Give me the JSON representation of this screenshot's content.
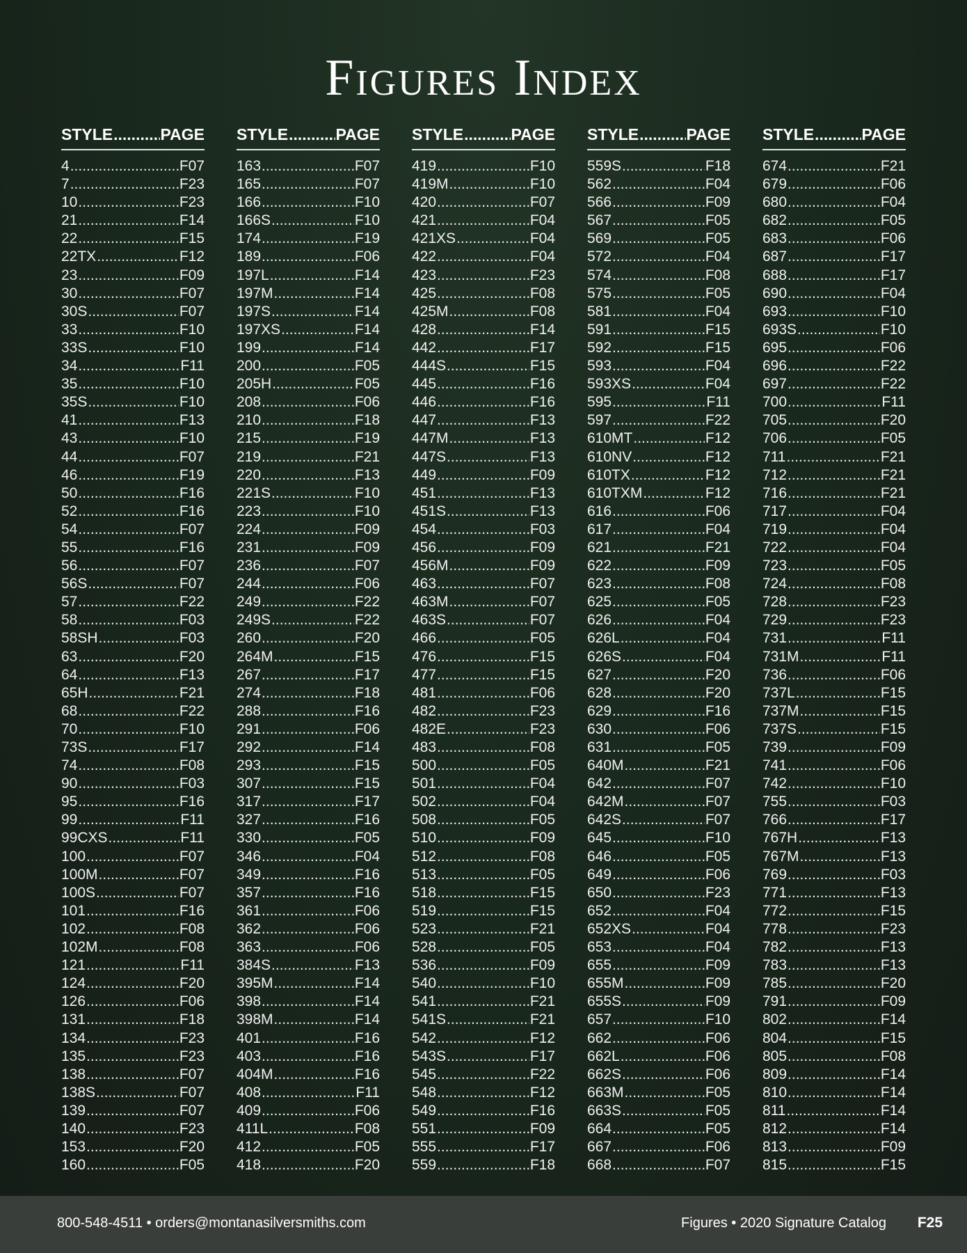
{
  "title": "Figures Index",
  "column_header": {
    "style": "STYLE",
    "page": "PAGE"
  },
  "columns": [
    [
      [
        "4",
        "F07"
      ],
      [
        "7",
        "F23"
      ],
      [
        "10",
        "F23"
      ],
      [
        "21",
        "F14"
      ],
      [
        "22",
        "F15"
      ],
      [
        "22TX",
        "F12"
      ],
      [
        "23",
        "F09"
      ],
      [
        "30",
        "F07"
      ],
      [
        "30S",
        "F07"
      ],
      [
        "33",
        "F10"
      ],
      [
        "33S",
        "F10"
      ],
      [
        "34",
        "F11"
      ],
      [
        "35",
        "F10"
      ],
      [
        "35S",
        "F10"
      ],
      [
        "41",
        "F13"
      ],
      [
        "43",
        "F10"
      ],
      [
        "44",
        "F07"
      ],
      [
        "46",
        "F19"
      ],
      [
        "50",
        "F16"
      ],
      [
        "52",
        "F16"
      ],
      [
        "54",
        "F07"
      ],
      [
        "55",
        "F16"
      ],
      [
        "56",
        "F07"
      ],
      [
        "56S",
        "F07"
      ],
      [
        "57",
        "F22"
      ],
      [
        "58",
        "F03"
      ],
      [
        "58SH",
        "F03"
      ],
      [
        "63",
        "F20"
      ],
      [
        "64",
        "F13"
      ],
      [
        "65H",
        "F21"
      ],
      [
        "68",
        "F22"
      ],
      [
        "70",
        "F10"
      ],
      [
        "73S",
        "F17"
      ],
      [
        "74",
        "F08"
      ],
      [
        "90",
        "F03"
      ],
      [
        "95",
        "F16"
      ],
      [
        "99",
        "F11"
      ],
      [
        "99CXS",
        "F11"
      ],
      [
        "100",
        "F07"
      ],
      [
        "100M",
        "F07"
      ],
      [
        "100S",
        "F07"
      ],
      [
        "101",
        "F16"
      ],
      [
        "102",
        "F08"
      ],
      [
        "102M",
        "F08"
      ],
      [
        "121",
        "F11"
      ],
      [
        "124",
        "F20"
      ],
      [
        "126",
        "F06"
      ],
      [
        "131",
        "F18"
      ],
      [
        "134",
        "F23"
      ],
      [
        "135",
        "F23"
      ],
      [
        "138",
        "F07"
      ],
      [
        "138S",
        "F07"
      ],
      [
        "139",
        "F07"
      ],
      [
        "140",
        "F23"
      ],
      [
        "153",
        "F20"
      ],
      [
        "160",
        "F05"
      ]
    ],
    [
      [
        "163",
        "F07"
      ],
      [
        "165",
        "F07"
      ],
      [
        "166",
        "F10"
      ],
      [
        "166S",
        "F10"
      ],
      [
        "174",
        "F19"
      ],
      [
        "189",
        "F06"
      ],
      [
        "197L",
        "F14"
      ],
      [
        "197M",
        "F14"
      ],
      [
        "197S",
        "F14"
      ],
      [
        "197XS",
        "F14"
      ],
      [
        "199",
        "F14"
      ],
      [
        "200",
        "F05"
      ],
      [
        "205H",
        "F05"
      ],
      [
        "208",
        "F06"
      ],
      [
        "210",
        "F18"
      ],
      [
        "215",
        "F19"
      ],
      [
        "219",
        "F21"
      ],
      [
        "220",
        "F13"
      ],
      [
        "221S",
        "F10"
      ],
      [
        "223",
        "F10"
      ],
      [
        "224",
        "F09"
      ],
      [
        "231",
        "F09"
      ],
      [
        "236",
        "F07"
      ],
      [
        "244",
        "F06"
      ],
      [
        "249",
        "F22"
      ],
      [
        "249S",
        "F22"
      ],
      [
        "260",
        "F20"
      ],
      [
        "264M",
        "F15"
      ],
      [
        "267",
        "F17"
      ],
      [
        "274",
        "F18"
      ],
      [
        "288",
        "F16"
      ],
      [
        "291",
        "F06"
      ],
      [
        "292",
        "F14"
      ],
      [
        "293",
        "F15"
      ],
      [
        "307",
        "F15"
      ],
      [
        "317",
        "F17"
      ],
      [
        "327",
        "F16"
      ],
      [
        "330",
        "F05"
      ],
      [
        "346",
        "F04"
      ],
      [
        "349",
        "F16"
      ],
      [
        "357",
        "F16"
      ],
      [
        "361",
        "F06"
      ],
      [
        "362",
        "F06"
      ],
      [
        "363",
        "F06"
      ],
      [
        "384S",
        "F13"
      ],
      [
        "395M",
        "F14"
      ],
      [
        "398",
        "F14"
      ],
      [
        "398M",
        "F14"
      ],
      [
        "401",
        "F16"
      ],
      [
        "403",
        "F16"
      ],
      [
        "404M",
        "F16"
      ],
      [
        "408",
        "F11"
      ],
      [
        "409",
        "F06"
      ],
      [
        "411L",
        "F08"
      ],
      [
        "412",
        "F05"
      ],
      [
        "418",
        "F20"
      ]
    ],
    [
      [
        "419",
        "F10"
      ],
      [
        "419M",
        "F10"
      ],
      [
        "420",
        "F07"
      ],
      [
        "421",
        "F04"
      ],
      [
        "421XS",
        "F04"
      ],
      [
        "422",
        "F04"
      ],
      [
        "423",
        "F23"
      ],
      [
        "425",
        "F08"
      ],
      [
        "425M",
        "F08"
      ],
      [
        "428",
        "F14"
      ],
      [
        "442",
        "F17"
      ],
      [
        "444S",
        "F15"
      ],
      [
        "445",
        "F16"
      ],
      [
        "446",
        "F16"
      ],
      [
        "447",
        "F13"
      ],
      [
        "447M",
        "F13"
      ],
      [
        "447S",
        "F13"
      ],
      [
        "449",
        "F09"
      ],
      [
        "451",
        "F13"
      ],
      [
        "451S",
        "F13"
      ],
      [
        "454",
        "F03"
      ],
      [
        "456",
        "F09"
      ],
      [
        "456M",
        "F09"
      ],
      [
        "463",
        "F07"
      ],
      [
        "463M",
        "F07"
      ],
      [
        "463S",
        "F07"
      ],
      [
        "466",
        "F05"
      ],
      [
        "476",
        "F15"
      ],
      [
        "477",
        "F15"
      ],
      [
        "481",
        "F06"
      ],
      [
        "482",
        "F23"
      ],
      [
        "482E",
        "F23"
      ],
      [
        "483",
        "F08"
      ],
      [
        "500",
        "F05"
      ],
      [
        "501",
        "F04"
      ],
      [
        "502",
        "F04"
      ],
      [
        "508",
        "F05"
      ],
      [
        "510",
        "F09"
      ],
      [
        "512",
        "F08"
      ],
      [
        "513",
        "F05"
      ],
      [
        "518",
        "F15"
      ],
      [
        "519",
        "F15"
      ],
      [
        "523",
        "F21"
      ],
      [
        "528",
        "F05"
      ],
      [
        "536",
        "F09"
      ],
      [
        "540",
        "F10"
      ],
      [
        "541",
        "F21"
      ],
      [
        "541S",
        "F21"
      ],
      [
        "542",
        "F12"
      ],
      [
        "543S",
        "F17"
      ],
      [
        "545",
        "F22"
      ],
      [
        "548",
        "F12"
      ],
      [
        "549",
        "F16"
      ],
      [
        "551",
        "F09"
      ],
      [
        "555",
        "F17"
      ],
      [
        "559",
        "F18"
      ]
    ],
    [
      [
        "559S",
        "F18"
      ],
      [
        "562",
        "F04"
      ],
      [
        "566",
        "F09"
      ],
      [
        "567",
        "F05"
      ],
      [
        "569",
        "F05"
      ],
      [
        "572",
        "F04"
      ],
      [
        "574",
        "F08"
      ],
      [
        "575",
        "F05"
      ],
      [
        "581",
        "F04"
      ],
      [
        "591",
        "F15"
      ],
      [
        "592",
        "F15"
      ],
      [
        "593",
        "F04"
      ],
      [
        "593XS",
        "F04"
      ],
      [
        "595",
        "F11"
      ],
      [
        "597",
        "F22"
      ],
      [
        "610MT",
        "F12"
      ],
      [
        "610NV",
        "F12"
      ],
      [
        "610TX",
        "F12"
      ],
      [
        "610TXM",
        "F12"
      ],
      [
        "616",
        "F06"
      ],
      [
        "617",
        "F04"
      ],
      [
        "621",
        "F21"
      ],
      [
        "622",
        "F09"
      ],
      [
        "623",
        "F08"
      ],
      [
        "625",
        "F05"
      ],
      [
        "626",
        "F04"
      ],
      [
        "626L",
        "F04"
      ],
      [
        "626S",
        "F04"
      ],
      [
        "627",
        "F20"
      ],
      [
        "628",
        "F20"
      ],
      [
        "629",
        "F16"
      ],
      [
        "630",
        "F06"
      ],
      [
        "631",
        "F05"
      ],
      [
        "640M",
        "F21"
      ],
      [
        "642",
        "F07"
      ],
      [
        "642M",
        "F07"
      ],
      [
        "642S",
        "F07"
      ],
      [
        "645",
        "F10"
      ],
      [
        "646",
        "F05"
      ],
      [
        "649",
        "F06"
      ],
      [
        "650",
        "F23"
      ],
      [
        "652",
        "F04"
      ],
      [
        "652XS",
        "F04"
      ],
      [
        "653",
        "F04"
      ],
      [
        "655",
        "F09"
      ],
      [
        "655M",
        "F09"
      ],
      [
        "655S",
        "F09"
      ],
      [
        "657",
        "F10"
      ],
      [
        "662",
        "F06"
      ],
      [
        "662L",
        "F06"
      ],
      [
        "662S",
        "F06"
      ],
      [
        "663M",
        "F05"
      ],
      [
        "663S",
        "F05"
      ],
      [
        "664",
        "F05"
      ],
      [
        "667",
        "F06"
      ],
      [
        "668",
        "F07"
      ]
    ],
    [
      [
        "674",
        "F21"
      ],
      [
        "679",
        "F06"
      ],
      [
        "680",
        "F04"
      ],
      [
        "682",
        "F05"
      ],
      [
        "683",
        "F06"
      ],
      [
        "687",
        "F17"
      ],
      [
        "688",
        "F17"
      ],
      [
        "690",
        "F04"
      ],
      [
        "693",
        "F10"
      ],
      [
        "693S",
        "F10"
      ],
      [
        "695",
        "F06"
      ],
      [
        "696",
        "F22"
      ],
      [
        "697",
        "F22"
      ],
      [
        "700",
        "F11"
      ],
      [
        "705",
        "F20"
      ],
      [
        "706",
        "F05"
      ],
      [
        "711",
        "F21"
      ],
      [
        "712",
        "F21"
      ],
      [
        "716",
        "F21"
      ],
      [
        "717",
        "F04"
      ],
      [
        "719",
        "F04"
      ],
      [
        "722",
        "F04"
      ],
      [
        "723",
        "F05"
      ],
      [
        "724",
        "F08"
      ],
      [
        "728",
        "F23"
      ],
      [
        "729",
        "F23"
      ],
      [
        "731",
        "F11"
      ],
      [
        "731M",
        "F11"
      ],
      [
        "736",
        "F06"
      ],
      [
        "737L",
        "F15"
      ],
      [
        "737M",
        "F15"
      ],
      [
        "737S",
        "F15"
      ],
      [
        "739",
        "F09"
      ],
      [
        "741",
        "F06"
      ],
      [
        "742",
        "F10"
      ],
      [
        "755",
        "F03"
      ],
      [
        "766",
        "F17"
      ],
      [
        "767H",
        "F13"
      ],
      [
        "767M",
        "F13"
      ],
      [
        "769",
        "F03"
      ],
      [
        "771",
        "F13"
      ],
      [
        "772",
        "F15"
      ],
      [
        "778",
        "F23"
      ],
      [
        "782",
        "F13"
      ],
      [
        "783",
        "F13"
      ],
      [
        "785",
        "F20"
      ],
      [
        "791",
        "F09"
      ],
      [
        "802",
        "F14"
      ],
      [
        "804",
        "F15"
      ],
      [
        "805",
        "F08"
      ],
      [
        "809",
        "F14"
      ],
      [
        "810",
        "F14"
      ],
      [
        "811",
        "F14"
      ],
      [
        "812",
        "F14"
      ],
      [
        "813",
        "F09"
      ],
      [
        "815",
        "F15"
      ]
    ]
  ],
  "footer": {
    "contact": "800-548-4511 • orders@montanasilversmiths.com",
    "catalog": "Figures • 2020 Signature Catalog",
    "page_number": "F25"
  },
  "colors": {
    "background": "#1a2a1e",
    "footer_bar": "#3a3e3b",
    "text": "#ffffff"
  }
}
